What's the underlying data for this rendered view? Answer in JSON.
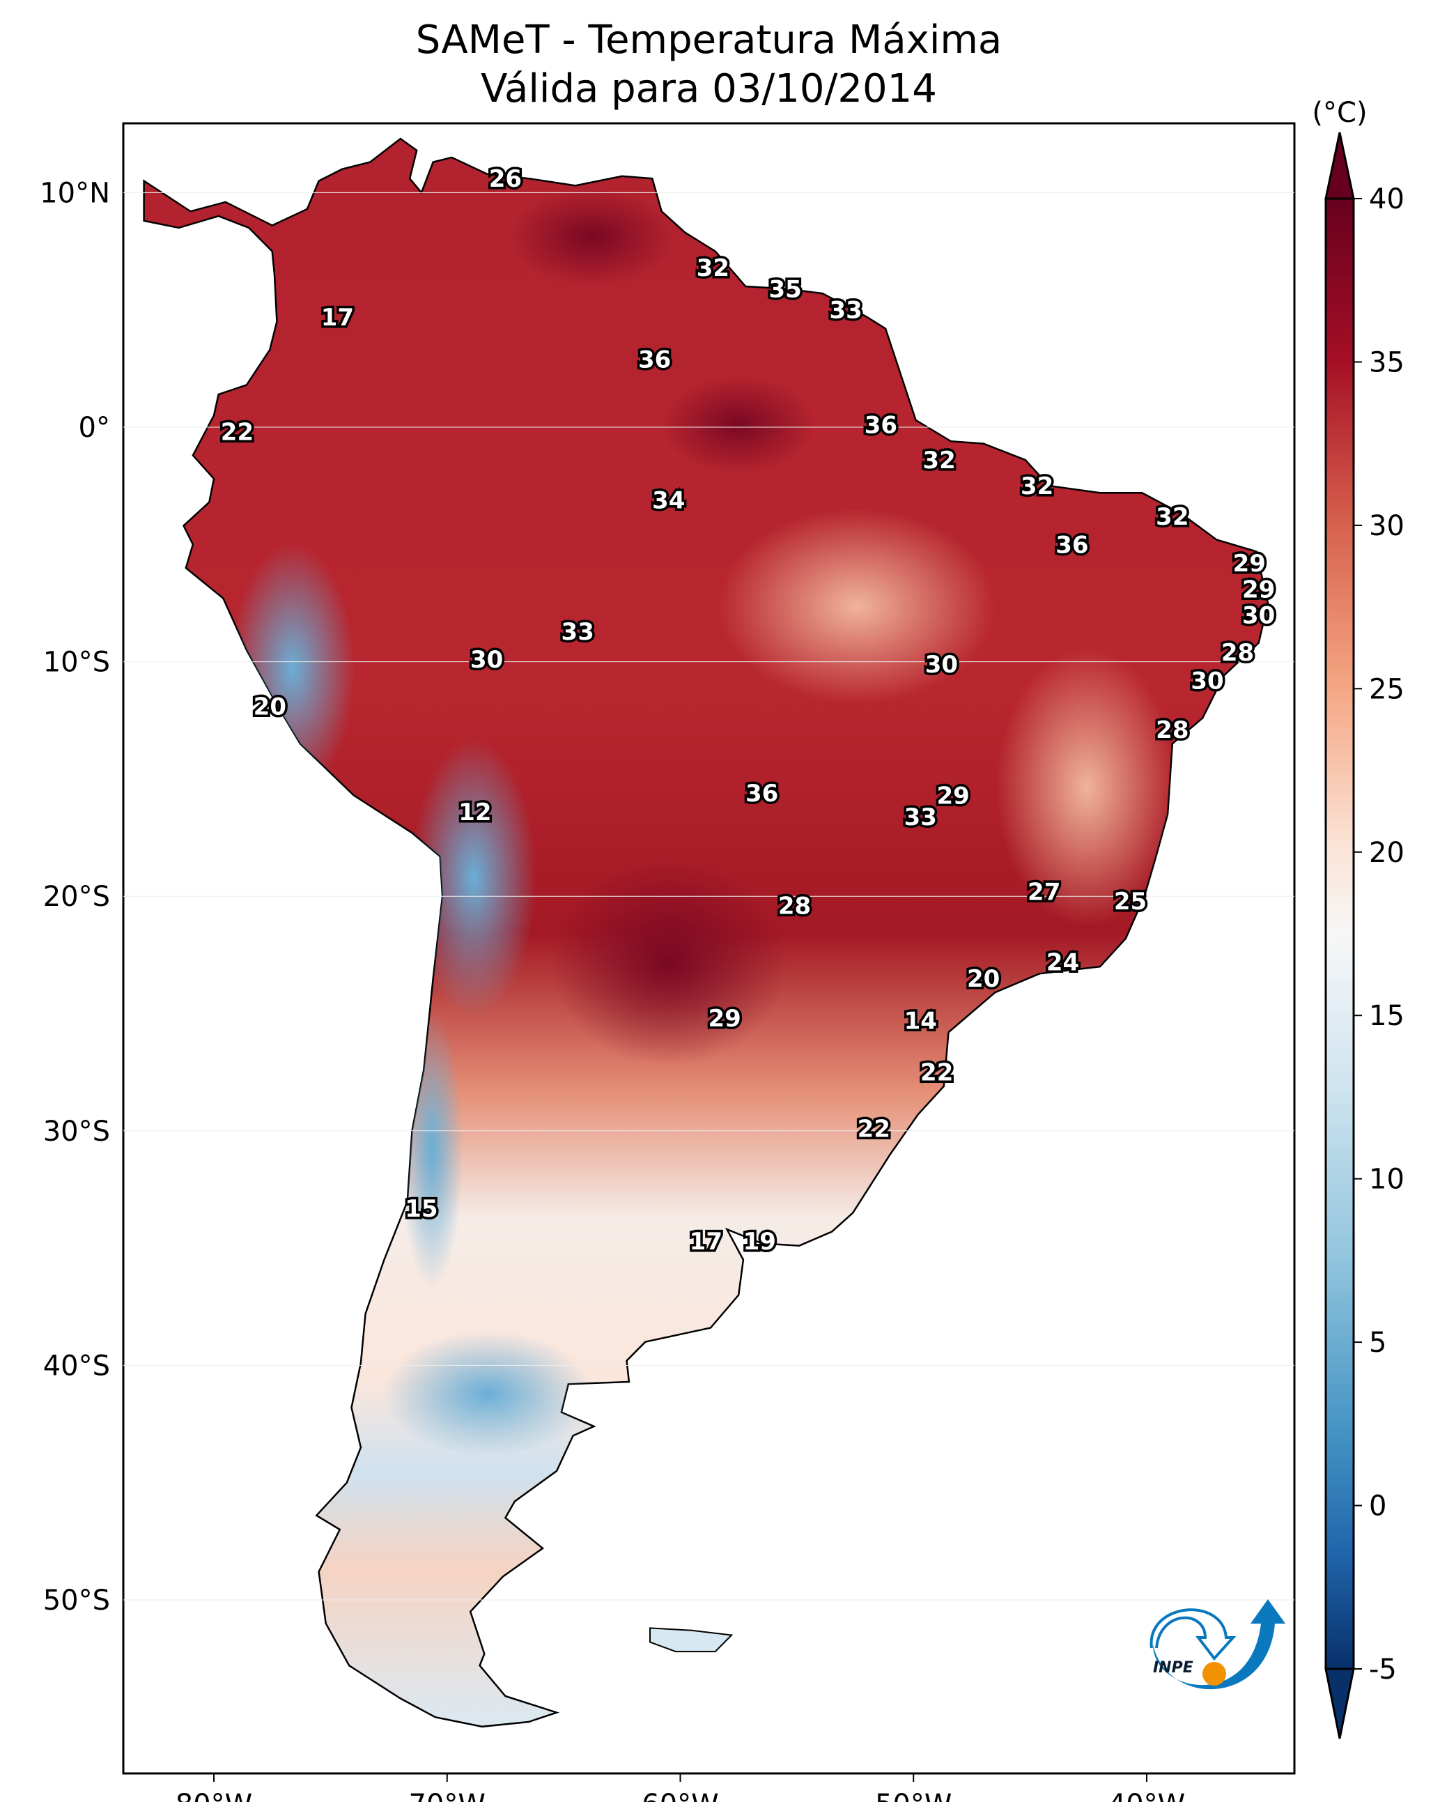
{
  "title": {
    "line1": "SAMeT - Temperatura Máxima",
    "line2": "Válida para 03/10/2014"
  },
  "colorbar": {
    "unit_label": "(°C)",
    "ticks": [
      "40",
      "35",
      "30",
      "25",
      "20",
      "15",
      "10",
      "5",
      "0",
      "-5"
    ],
    "range": [
      -5,
      40
    ],
    "extend": "both",
    "colormap": "RdBu_r",
    "colors": {
      "low": "#08306b",
      "mid": "#f7f7f7",
      "high": "#67001f"
    }
  },
  "logo": {
    "text": "INPE",
    "colors": {
      "blue": "#0a78bd",
      "orange": "#f39200"
    }
  },
  "chart_data": {
    "type": "heatmap",
    "title": "SAMeT - Temperatura Máxima — Válida para 03/10/2014",
    "xlabel": "",
    "ylabel": "",
    "x_ticks": [
      "80°W",
      "70°W",
      "60°W",
      "50°W",
      "40°W"
    ],
    "x_tick_values": [
      -80,
      -70,
      -60,
      -50,
      -40
    ],
    "y_ticks": [
      "10°N",
      "0°",
      "10°S",
      "20°S",
      "30°S",
      "40°S",
      "50°S"
    ],
    "y_tick_values": [
      10,
      0,
      -10,
      -20,
      -30,
      -40,
      -50
    ],
    "lon_range": [
      -83,
      -33
    ],
    "lat_range": [
      -57,
      13
    ],
    "value_range": [
      -5,
      40
    ],
    "unit": "°C",
    "station_labels": [
      {
        "v": "26",
        "lon": -67.5,
        "lat": 10.6
      },
      {
        "v": "17",
        "lon": -74.7,
        "lat": 4.7
      },
      {
        "v": "22",
        "lon": -79.0,
        "lat": -0.2
      },
      {
        "v": "32",
        "lon": -58.6,
        "lat": 6.8
      },
      {
        "v": "35",
        "lon": -55.5,
        "lat": 5.9
      },
      {
        "v": "33",
        "lon": -52.9,
        "lat": 5.0
      },
      {
        "v": "36",
        "lon": -61.1,
        "lat": 2.9
      },
      {
        "v": "36",
        "lon": -51.4,
        "lat": 0.1
      },
      {
        "v": "32",
        "lon": -48.9,
        "lat": -1.4
      },
      {
        "v": "34",
        "lon": -60.5,
        "lat": -3.1
      },
      {
        "v": "32",
        "lon": -44.7,
        "lat": -2.5
      },
      {
        "v": "32",
        "lon": -38.9,
        "lat": -3.8
      },
      {
        "v": "36",
        "lon": -43.2,
        "lat": -5.0
      },
      {
        "v": "29",
        "lon": -35.6,
        "lat": -5.8
      },
      {
        "v": "29",
        "lon": -35.2,
        "lat": -6.9
      },
      {
        "v": "30",
        "lon": -35.2,
        "lat": -8.0
      },
      {
        "v": "28",
        "lon": -36.1,
        "lat": -9.6
      },
      {
        "v": "30",
        "lon": -37.4,
        "lat": -10.8
      },
      {
        "v": "28",
        "lon": -38.9,
        "lat": -12.9
      },
      {
        "v": "33",
        "lon": -64.4,
        "lat": -8.7
      },
      {
        "v": "30",
        "lon": -68.3,
        "lat": -9.9
      },
      {
        "v": "30",
        "lon": -48.8,
        "lat": -10.1
      },
      {
        "v": "20",
        "lon": -77.6,
        "lat": -11.9
      },
      {
        "v": "12",
        "lon": -68.8,
        "lat": -16.4
      },
      {
        "v": "36",
        "lon": -56.5,
        "lat": -15.6
      },
      {
        "v": "29",
        "lon": -48.3,
        "lat": -15.7
      },
      {
        "v": "33",
        "lon": -49.7,
        "lat": -16.6
      },
      {
        "v": "27",
        "lon": -44.4,
        "lat": -19.8
      },
      {
        "v": "25",
        "lon": -40.7,
        "lat": -20.2
      },
      {
        "v": "28",
        "lon": -55.1,
        "lat": -20.4
      },
      {
        "v": "20",
        "lon": -47.0,
        "lat": -23.5
      },
      {
        "v": "24",
        "lon": -43.6,
        "lat": -22.8
      },
      {
        "v": "29",
        "lon": -58.1,
        "lat": -25.2
      },
      {
        "v": "14",
        "lon": -49.7,
        "lat": -25.3
      },
      {
        "v": "22",
        "lon": -49.0,
        "lat": -27.5
      },
      {
        "v": "22",
        "lon": -51.7,
        "lat": -29.9
      },
      {
        "v": "15",
        "lon": -71.1,
        "lat": -33.3
      },
      {
        "v": "17",
        "lon": -58.9,
        "lat": -34.7
      },
      {
        "v": "19",
        "lon": -56.6,
        "lat": -34.7
      }
    ]
  }
}
